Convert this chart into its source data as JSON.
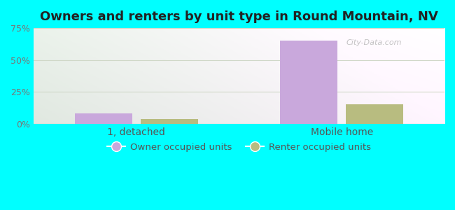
{
  "title": "Owners and renters by unit type in Round Mountain, NV",
  "categories": [
    "1, detached",
    "Mobile home"
  ],
  "owner_values": [
    8.0,
    65.0
  ],
  "renter_values": [
    4.0,
    15.0
  ],
  "owner_color": "#c9a8dc",
  "renter_color": "#b8bc80",
  "ylim": [
    0,
    75
  ],
  "yticks": [
    0,
    25,
    50,
    75
  ],
  "ytick_labels": [
    "0%",
    "25%",
    "50%",
    "75%"
  ],
  "outer_background": "#00ffff",
  "bar_width": 0.28,
  "title_fontsize": 13,
  "legend_labels": [
    "Owner occupied units",
    "Renter occupied units"
  ],
  "grid_color": "#d0d8c8",
  "watermark": "City-Data.com"
}
